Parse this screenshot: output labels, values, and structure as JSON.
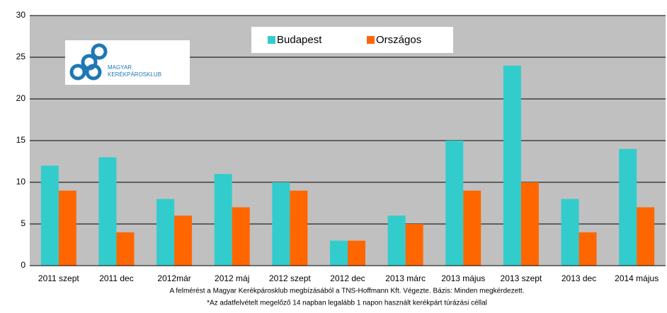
{
  "chart_data": {
    "type": "bar",
    "categories": [
      "2011 szept",
      "2011 dec",
      "2012már",
      "2012 máj",
      "2012 szept",
      "2012 dec",
      "2013 márc",
      "2013 május",
      "2013 szept",
      "2013 dec",
      "2014 május"
    ],
    "series": [
      {
        "name": "Budapest",
        "color": "#33cccc",
        "values": [
          12,
          13,
          8,
          11,
          10,
          3,
          6,
          15,
          24,
          8,
          14
        ]
      },
      {
        "name": "Országos",
        "color": "#ff6600",
        "values": [
          9,
          4,
          6,
          7,
          9,
          3,
          5,
          9,
          10,
          4,
          7
        ]
      }
    ],
    "ylim": [
      0,
      30
    ],
    "yticks": [
      0,
      5,
      10,
      15,
      20,
      25,
      30
    ],
    "grid": true,
    "notes": [
      "A felmérést a Magyar Kerékpárosklub megbízásából a TNS-Hoffmann Kft. Végezte. Bázis: Minden megkérdezett.",
      "*Az adatfelvételt megelőző 14 napban legalább 1 napon használt kerékpárt túrázási céllal"
    ],
    "logo": [
      "MAGYAR",
      "KERÉKPÁROSKLUB"
    ]
  }
}
